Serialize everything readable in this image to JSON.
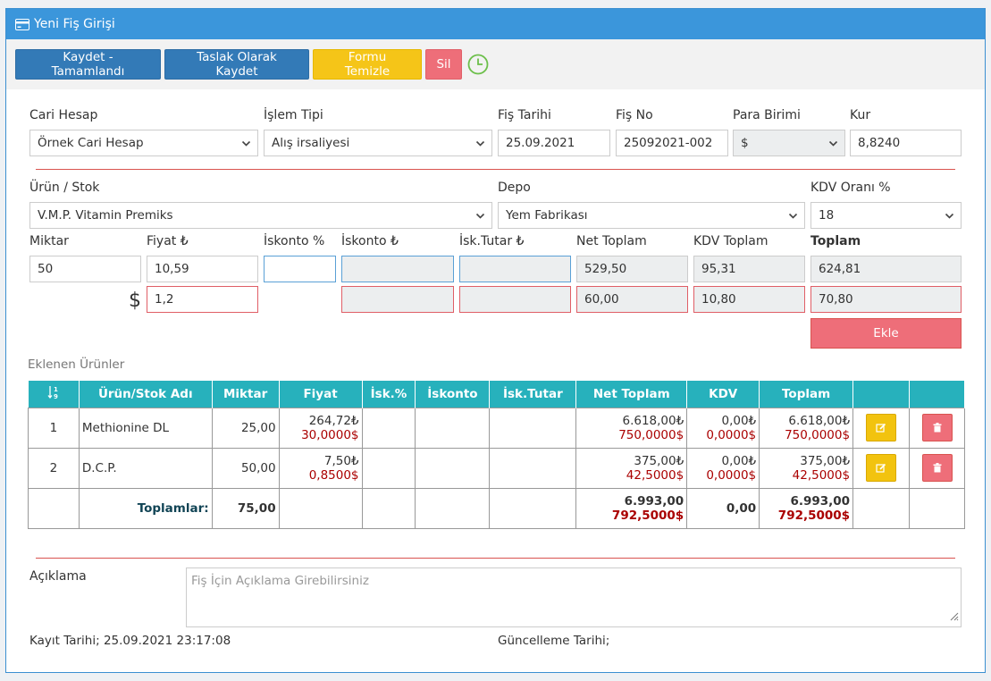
{
  "header": {
    "title": "Yeni Fiş Girişi",
    "icon": "credit-card-icon"
  },
  "toolbar": {
    "save_complete": "Kaydet - Tamamlandı",
    "save_draft": "Taslak Olarak Kaydet",
    "clear_form": "Formu Temizle",
    "delete": "Sil",
    "clock_icon": "clock-icon"
  },
  "form": {
    "cari_hesap": {
      "label": "Cari Hesap",
      "value": "Örnek Cari Hesap"
    },
    "islem_tipi": {
      "label": "İşlem Tipi",
      "value": "Alış irsaliyesi"
    },
    "fis_tarihi": {
      "label": "Fiş Tarihi",
      "value": "25.09.2021"
    },
    "fis_no": {
      "label": "Fiş No",
      "value": "25092021-002"
    },
    "para_birimi": {
      "label": "Para Birimi",
      "value": "$"
    },
    "kur": {
      "label": "Kur",
      "value": "8,8240"
    },
    "urun_stok": {
      "label": "Ürün / Stok",
      "value": "V.M.P. Vitamin Premiks"
    },
    "depo": {
      "label": "Depo",
      "value": "Yem Fabrikası"
    },
    "kdv_orani": {
      "label": "KDV Oranı %",
      "value": "18"
    },
    "miktar": {
      "label": "Miktar",
      "value": "50"
    },
    "fiyat": {
      "label": "Fiyat ₺",
      "value": "10,59",
      "usd_value": "1,2"
    },
    "iskonto_yuzde": {
      "label": "İskonto %",
      "value": ""
    },
    "iskonto_tl": {
      "label": "İskonto ₺",
      "value": ""
    },
    "isk_tutar": {
      "label": "İsk.Tutar ₺",
      "value": ""
    },
    "net_toplam": {
      "label": "Net Toplam",
      "value": "529,50",
      "usd_value": "60,00"
    },
    "kdv_toplam": {
      "label": "KDV Toplam",
      "value": "95,31",
      "usd_value": "10,80"
    },
    "toplam": {
      "label": "Toplam",
      "value": "624,81",
      "usd_value": "70,80"
    },
    "currency_symbol": "$",
    "add_button": "Ekle"
  },
  "items": {
    "section_title": "Eklenen Ürünler",
    "columns": [
      "Ürün/Stok Adı",
      "Miktar",
      "Fiyat",
      "İsk.%",
      "İskonto",
      "İsk.Tutar",
      "Net Toplam",
      "KDV",
      "Toplam"
    ],
    "rows": [
      {
        "no": "1",
        "name": "Methionine DL",
        "miktar": "25,00",
        "fiyat_tl": "264,72₺",
        "fiyat_usd": "30,0000$",
        "net_tl": "6.618,00₺",
        "net_usd": "750,0000$",
        "kdv_tl": "0,00₺",
        "kdv_usd": "0,0000$",
        "toplam_tl": "6.618,00₺",
        "toplam_usd": "750,0000$"
      },
      {
        "no": "2",
        "name": "D.C.P.",
        "miktar": "50,00",
        "fiyat_tl": "7,50₺",
        "fiyat_usd": "0,8500$",
        "net_tl": "375,00₺",
        "net_usd": "42,5000$",
        "kdv_tl": "0,00₺",
        "kdv_usd": "0,0000$",
        "toplam_tl": "375,00₺",
        "toplam_usd": "42,5000$"
      }
    ],
    "totals": {
      "label": "Toplamlar:",
      "miktar": "75,00",
      "net_tl": "6.993,00",
      "net_usd": "792,5000$",
      "kdv": "0,00",
      "toplam_tl": "6.993,00",
      "toplam_usd": "792,5000$"
    }
  },
  "aciklama": {
    "label": "Açıklama",
    "placeholder": "Fiş İçin Açıklama Girebilirsiniz"
  },
  "footer": {
    "kayit_tarihi": "Kayıt Tarihi; 25.09.2021 23:17:08",
    "guncelleme_tarihi": "Güncelleme Tarihi;"
  },
  "colors": {
    "header": "#3b96db",
    "table_header": "#27b1bc",
    "danger": "#ee6e79",
    "warning": "#f5c518",
    "primary": "#337ab7"
  }
}
